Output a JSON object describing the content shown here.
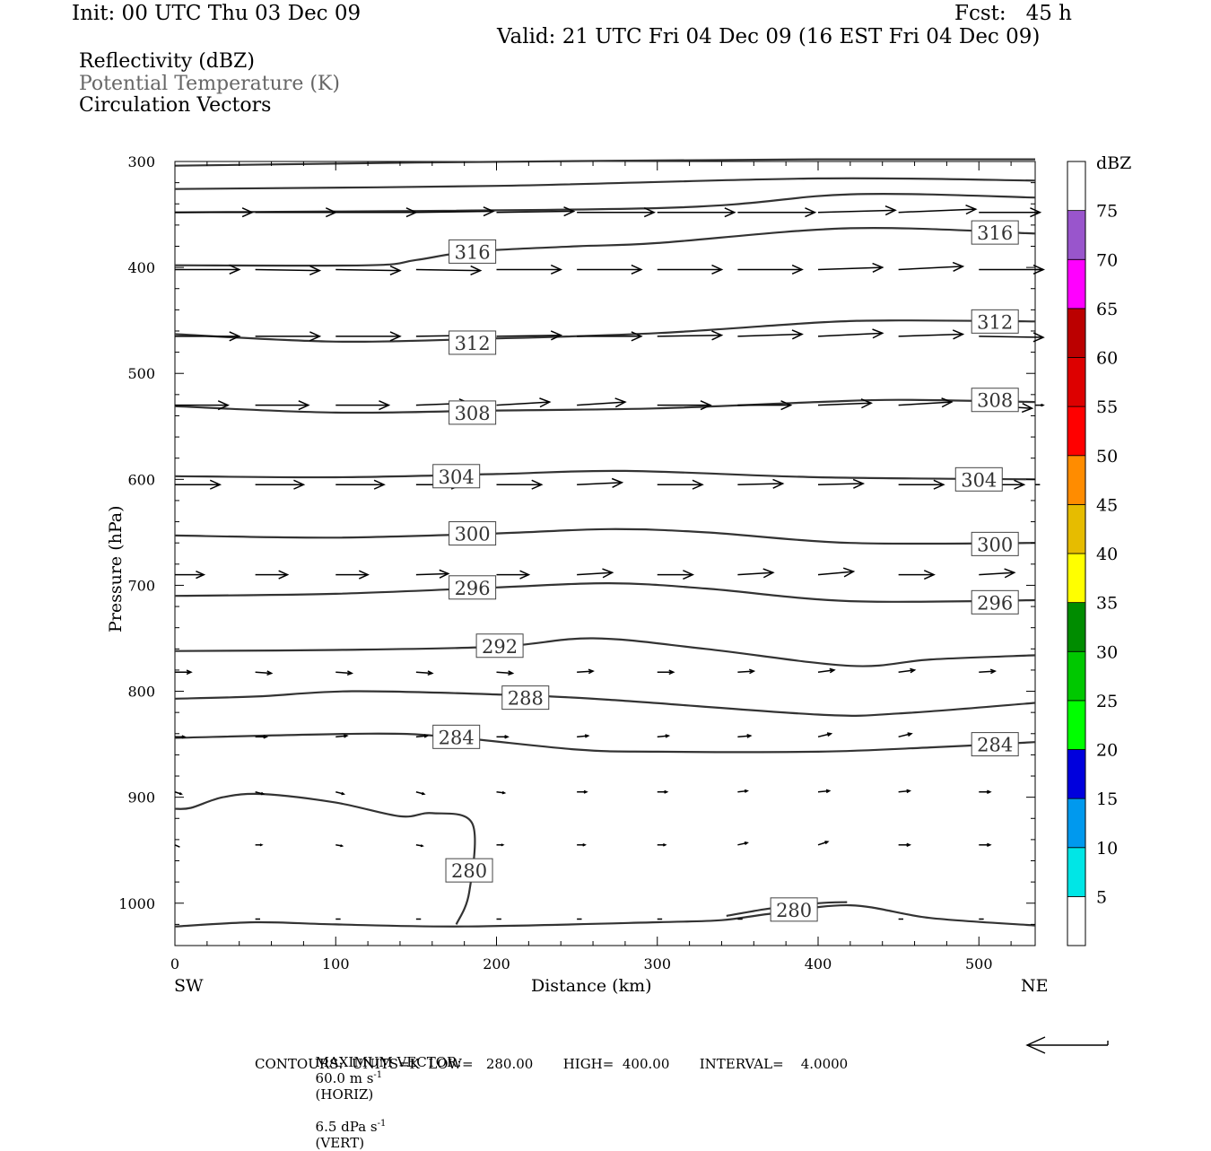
{
  "header": {
    "init": "Init: 00 UTC Thu 03 Dec 09",
    "fcst": "Fcst:   45 h",
    "valid": "Valid: 21 UTC Fri 04 Dec 09 (16 EST Fri 04 Dec 09)"
  },
  "fields": [
    "Reflectivity (dBZ)",
    "Potential Temperature (K)",
    "Circulation Vectors"
  ],
  "footer": {
    "max_vector_label": "MAXIMUM VECTOR:",
    "max_vector_horiz": "60.0 m s",
    "horiz_tag": "(HORIZ)",
    "max_vector_vert": "6.5 dPa s",
    "vert_tag": "(VERT)",
    "exponent": "-1",
    "contours": "CONTOURS:  UNITS=K  LOW=   280.00       HIGH=  400.00       INTERVAL=    4.0000"
  },
  "chart_data": {
    "type": "cross-section contour",
    "xlabel": "Distance (km)",
    "ylabel": "Pressure (hPa)",
    "x_ticks": [
      0,
      100,
      200,
      300,
      400,
      500
    ],
    "y_ticks": [
      300,
      400,
      500,
      600,
      700,
      800,
      900,
      1000
    ],
    "xlim": [
      0,
      535
    ],
    "ylim": [
      300,
      1040
    ],
    "x_end_labels": {
      "left": "SW",
      "right": "NE"
    },
    "contour_levels_K": [
      280,
      284,
      288,
      292,
      296,
      300,
      304,
      308,
      312,
      316
    ],
    "contours": [
      {
        "level": 300,
        "points": [
          [
            0,
            304
          ],
          [
            150,
            301
          ],
          [
            400,
            298
          ],
          [
            535,
            298
          ]
        ]
      },
      {
        "level": 300,
        "points": [
          [
            0,
            326
          ],
          [
            200,
            323
          ],
          [
            400,
            316
          ],
          [
            535,
            318
          ]
        ]
      },
      {
        "level": 300,
        "points": [
          [
            0,
            348
          ],
          [
            300,
            344
          ],
          [
            420,
            331
          ],
          [
            535,
            334
          ]
        ]
      },
      {
        "level": 316,
        "label": "316",
        "label_positions": [
          [
            185,
            385
          ],
          [
            510,
            367
          ]
        ],
        "points": [
          [
            0,
            398
          ],
          [
            120,
            398
          ],
          [
            150,
            393
          ],
          [
            185,
            385
          ],
          [
            250,
            380
          ],
          [
            300,
            377
          ],
          [
            420,
            363
          ],
          [
            535,
            368
          ]
        ]
      },
      {
        "level": 312,
        "label": "312",
        "label_positions": [
          [
            185,
            471
          ],
          [
            510,
            451
          ]
        ],
        "points": [
          [
            0,
            463
          ],
          [
            100,
            470
          ],
          [
            200,
            467
          ],
          [
            300,
            462
          ],
          [
            400,
            452
          ],
          [
            450,
            450
          ],
          [
            535,
            451
          ]
        ]
      },
      {
        "level": 308,
        "label": "308",
        "label_positions": [
          [
            185,
            537
          ],
          [
            510,
            525
          ]
        ],
        "points": [
          [
            0,
            531
          ],
          [
            100,
            537
          ],
          [
            200,
            535
          ],
          [
            300,
            533
          ],
          [
            400,
            527
          ],
          [
            450,
            525
          ],
          [
            535,
            527
          ]
        ]
      },
      {
        "level": 304,
        "label": "304",
        "label_positions": [
          [
            175,
            597
          ],
          [
            500,
            600
          ]
        ],
        "points": [
          [
            0,
            597
          ],
          [
            100,
            598
          ],
          [
            200,
            595
          ],
          [
            280,
            592
          ],
          [
            400,
            598
          ],
          [
            535,
            600
          ]
        ]
      },
      {
        "level": 300,
        "label": "300",
        "label_positions": [
          [
            185,
            651
          ],
          [
            510,
            661
          ]
        ],
        "points": [
          [
            0,
            653
          ],
          [
            100,
            655
          ],
          [
            200,
            651
          ],
          [
            270,
            647
          ],
          [
            330,
            650
          ],
          [
            420,
            660
          ],
          [
            535,
            660
          ]
        ]
      },
      {
        "level": 296,
        "label": "296",
        "label_positions": [
          [
            185,
            702
          ],
          [
            510,
            716
          ]
        ],
        "points": [
          [
            0,
            710
          ],
          [
            100,
            708
          ],
          [
            200,
            702
          ],
          [
            270,
            698
          ],
          [
            330,
            703
          ],
          [
            420,
            715
          ],
          [
            535,
            714
          ]
        ]
      },
      {
        "level": 292,
        "label": "292",
        "label_positions": [
          [
            202,
            757
          ]
        ],
        "points": [
          [
            0,
            762
          ],
          [
            100,
            761
          ],
          [
            200,
            758
          ],
          [
            260,
            750
          ],
          [
            330,
            760
          ],
          [
            420,
            776
          ],
          [
            470,
            770
          ],
          [
            535,
            766
          ]
        ]
      },
      {
        "level": 288,
        "label": "288",
        "label_positions": [
          [
            218,
            806
          ]
        ],
        "points": [
          [
            0,
            807
          ],
          [
            50,
            805
          ],
          [
            110,
            800
          ],
          [
            200,
            803
          ],
          [
            270,
            808
          ],
          [
            400,
            822
          ],
          [
            450,
            821
          ],
          [
            535,
            811
          ]
        ]
      },
      {
        "level": 284,
        "label": "284",
        "label_positions": [
          [
            175,
            843
          ],
          [
            510,
            850
          ]
        ],
        "points": [
          [
            0,
            844
          ],
          [
            120,
            840
          ],
          [
            170,
            843
          ],
          [
            250,
            855
          ],
          [
            300,
            857
          ],
          [
            400,
            857
          ],
          [
            470,
            853
          ],
          [
            535,
            848
          ]
        ]
      },
      {
        "level": 280,
        "label": "280",
        "label_positions": [
          [
            183,
            969
          ]
        ],
        "points": [
          [
            0,
            911
          ],
          [
            10,
            910
          ],
          [
            30,
            900
          ],
          [
            55,
            897
          ],
          [
            100,
            905
          ],
          [
            140,
            918
          ],
          [
            160,
            915
          ],
          [
            185,
            925
          ],
          [
            183,
            990
          ],
          [
            175,
            1020
          ]
        ]
      },
      {
        "level": 280,
        "points": [
          [
            0,
            1022
          ],
          [
            50,
            1018
          ],
          [
            100,
            1020
          ],
          [
            180,
            1022
          ],
          [
            300,
            1018
          ],
          [
            340,
            1016
          ],
          [
            370,
            1010
          ],
          [
            420,
            1002
          ],
          [
            470,
            1014
          ],
          [
            535,
            1021
          ]
        ]
      },
      {
        "level": 280,
        "label": "280",
        "label_positions": [
          [
            385,
            1006
          ]
        ],
        "points": [
          [
            343,
            1012
          ],
          [
            370,
            1005
          ],
          [
            400,
            1000
          ],
          [
            418,
            999
          ]
        ]
      }
    ],
    "colorbar": {
      "title": "dBZ",
      "labels": [
        "75",
        "70",
        "65",
        "60",
        "55",
        "50",
        "45",
        "40",
        "35",
        "30",
        "25",
        "20",
        "15",
        "10",
        "5"
      ],
      "bins": [
        {
          "from": 0,
          "to": 5,
          "color": "#ffffff"
        },
        {
          "from": 5,
          "to": 10,
          "color": "#00e6e6"
        },
        {
          "from": 10,
          "to": 15,
          "color": "#0099ee"
        },
        {
          "from": 15,
          "to": 20,
          "color": "#0000dd"
        },
        {
          "from": 20,
          "to": 25,
          "color": "#00ff00"
        },
        {
          "from": 25,
          "to": 30,
          "color": "#00c800"
        },
        {
          "from": 30,
          "to": 35,
          "color": "#008c00"
        },
        {
          "from": 35,
          "to": 40,
          "color": "#ffff00"
        },
        {
          "from": 40,
          "to": 45,
          "color": "#e6bc00"
        },
        {
          "from": 45,
          "to": 50,
          "color": "#ff8c00"
        },
        {
          "from": 50,
          "to": 55,
          "color": "#ff0000"
        },
        {
          "from": 55,
          "to": 60,
          "color": "#dd0000"
        },
        {
          "from": 60,
          "to": 65,
          "color": "#bb0000"
        },
        {
          "from": 65,
          "to": 70,
          "color": "#ff00ff"
        },
        {
          "from": 70,
          "to": 75,
          "color": "#9955cc"
        },
        {
          "from": 75,
          "to": 80,
          "color": "#ffffff"
        }
      ]
    },
    "vectors": {
      "note_units": "arrow direction/length from (dx km, dp hPa) offsets",
      "rows": [
        {
          "p": 348,
          "x": [
            0,
            50,
            100,
            150,
            200,
            250,
            300,
            350,
            400,
            450,
            500
          ],
          "dx": [
            48,
            50,
            50,
            48,
            48,
            48,
            48,
            48,
            48,
            48,
            38
          ],
          "dp": [
            0,
            0,
            0,
            -1,
            -1,
            0,
            0,
            0,
            -2,
            -3,
            0
          ]
        },
        {
          "p": 402,
          "x": [
            0,
            50,
            100,
            150,
            200,
            250,
            300,
            350,
            400,
            450,
            500,
            535
          ],
          "dx": [
            40,
            40,
            40,
            40,
            40,
            40,
            40,
            40,
            40,
            40,
            40,
            5
          ],
          "dp": [
            0,
            1,
            1,
            1,
            0,
            0,
            0,
            0,
            -2,
            -3,
            0,
            0
          ]
        },
        {
          "p": 465,
          "x": [
            0,
            50,
            100,
            150,
            200,
            250,
            300,
            350,
            400,
            450,
            500
          ],
          "dx": [
            40,
            40,
            40,
            40,
            40,
            40,
            40,
            40,
            40,
            40,
            40
          ],
          "dp": [
            0,
            0,
            0,
            -1,
            -1,
            0,
            -1,
            -2,
            -3,
            -2,
            1
          ]
        },
        {
          "p": 530,
          "x": [
            0,
            50,
            100,
            150,
            200,
            250,
            300,
            350,
            400,
            450,
            500,
            535
          ],
          "dx": [
            33,
            33,
            33,
            33,
            33,
            30,
            33,
            33,
            33,
            33,
            33,
            5
          ],
          "dp": [
            0,
            0,
            0,
            -2,
            -3,
            -3,
            0,
            0,
            -2,
            -3,
            3,
            0
          ]
        },
        {
          "p": 605,
          "x": [
            0,
            50,
            100,
            150,
            200,
            250,
            300,
            350,
            400,
            450,
            500,
            535
          ],
          "dx": [
            28,
            30,
            30,
            28,
            28,
            28,
            28,
            28,
            28,
            28,
            28,
            3
          ],
          "dp": [
            0,
            0,
            0,
            0,
            0,
            -2,
            0,
            -1,
            -1,
            0,
            0,
            0
          ]
        },
        {
          "p": 690,
          "x": [
            0,
            50,
            100,
            150,
            200,
            250,
            300,
            350,
            400,
            450,
            500
          ],
          "dx": [
            18,
            20,
            20,
            20,
            20,
            22,
            22,
            22,
            22,
            22,
            22
          ],
          "dp": [
            0,
            0,
            0,
            -1,
            0,
            -2,
            0,
            -2,
            -3,
            0,
            -2
          ]
        },
        {
          "p": 782,
          "x": [
            0,
            50,
            100,
            150,
            200,
            250,
            300,
            350,
            400,
            450,
            500
          ],
          "dx": [
            10,
            10,
            10,
            10,
            10,
            10,
            10,
            10,
            10,
            10,
            10
          ],
          "dp": [
            0,
            1,
            1,
            1,
            1,
            -1,
            0,
            -1,
            -2,
            -2,
            -1
          ]
        },
        {
          "p": 843,
          "x": [
            0,
            50,
            100,
            150,
            200,
            250,
            300,
            350,
            400,
            450,
            500
          ],
          "dx": [
            6,
            7,
            7,
            7,
            7,
            7,
            7,
            8,
            8,
            8,
            8
          ],
          "dp": [
            0,
            0,
            -1,
            -1,
            0,
            -1,
            -1,
            -1,
            -3,
            -3,
            -1
          ]
        },
        {
          "p": 895,
          "x": [
            0,
            50,
            100,
            150,
            200,
            250,
            300,
            350,
            400,
            450,
            500
          ],
          "dx": [
            4,
            5,
            5,
            5,
            5,
            6,
            6,
            6,
            7,
            7,
            7
          ],
          "dp": [
            2,
            2,
            2,
            2,
            1,
            0,
            0,
            -1,
            -1,
            -1,
            0
          ]
        },
        {
          "p": 945,
          "x": [
            0,
            50,
            100,
            150,
            200,
            250,
            300,
            350,
            400,
            450,
            500
          ],
          "dx": [
            3,
            4,
            4,
            4,
            4,
            5,
            5,
            6,
            6,
            7,
            7
          ],
          "dp": [
            2,
            0,
            1,
            1,
            0,
            0,
            0,
            -2,
            -3,
            0,
            0
          ]
        },
        {
          "p": 1015,
          "x": [
            50,
            100,
            150,
            200,
            250,
            300,
            350,
            450,
            500
          ],
          "dx": [
            3,
            3,
            3,
            3,
            3,
            3,
            3,
            3,
            3
          ],
          "dp": [
            0,
            0,
            0,
            0,
            0,
            0,
            0,
            0,
            0
          ]
        }
      ]
    }
  }
}
